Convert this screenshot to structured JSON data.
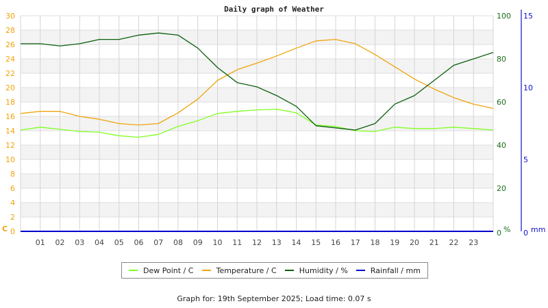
{
  "chart_data": {
    "type": "line",
    "title": "Daily graph of Weather",
    "xlabel": "",
    "x_ticks": [
      "01",
      "02",
      "03",
      "04",
      "05",
      "06",
      "07",
      "08",
      "09",
      "10",
      "11",
      "12",
      "13",
      "14",
      "15",
      "16",
      "17",
      "18",
      "19",
      "20",
      "21",
      "22",
      "23"
    ],
    "x_hours": [
      0,
      1,
      2,
      3,
      4,
      5,
      6,
      7,
      8,
      9,
      10,
      11,
      12,
      13,
      14,
      15,
      16,
      17,
      18,
      19,
      20,
      21,
      22,
      23,
      24
    ],
    "axes": {
      "left": {
        "label": "C",
        "range": [
          0,
          30
        ],
        "ticks": [
          0,
          2,
          4,
          6,
          8,
          10,
          12,
          14,
          16,
          18,
          20,
          22,
          24,
          26,
          28,
          30
        ],
        "color": "#f0a30a"
      },
      "right_humidity": {
        "label": "%",
        "range": [
          0,
          100
        ],
        "ticks": [
          0,
          20,
          40,
          60,
          80,
          100
        ],
        "color": "#1a6b1a"
      },
      "right_rainfall": {
        "label": "mm",
        "range": [
          0,
          15
        ],
        "ticks": [
          0,
          5,
          10,
          15
        ],
        "color": "#1010c8"
      }
    },
    "grid": true,
    "legend_position": "bottom",
    "series": [
      {
        "name": "Dew Point / C",
        "axis": "left",
        "color": "#80ff20",
        "values": [
          14.1,
          14.5,
          14.2,
          13.9,
          13.8,
          13.3,
          13.1,
          13.5,
          14.6,
          15.4,
          16.4,
          16.7,
          16.9,
          17.0,
          16.5,
          14.8,
          14.6,
          14.0,
          13.9,
          14.5,
          14.3,
          14.3,
          14.5,
          14.3,
          14.1
        ]
      },
      {
        "name": "Temperature / C",
        "axis": "left",
        "color": "#f0a30a",
        "values": [
          16.4,
          16.7,
          16.7,
          16.0,
          15.6,
          15.0,
          14.8,
          15.0,
          16.5,
          18.4,
          21.0,
          22.5,
          23.4,
          24.4,
          25.5,
          26.5,
          26.7,
          26.1,
          24.6,
          22.9,
          21.2,
          19.8,
          18.6,
          17.7,
          17.1
        ]
      },
      {
        "name": "Humidity / %",
        "axis": "right_humidity",
        "color": "#0b5e0b",
        "values": [
          87,
          87,
          86,
          87,
          89,
          89,
          91,
          92,
          91,
          85,
          76,
          69,
          67,
          63,
          58,
          49,
          48,
          47,
          50,
          59,
          63,
          70,
          77,
          80,
          83
        ]
      },
      {
        "name": "Rainfall / mm",
        "axis": "right_rainfall",
        "color": "#0000cc",
        "values": [
          0,
          0,
          0,
          0,
          0,
          0,
          0,
          0,
          0,
          0,
          0,
          0,
          0,
          0,
          0,
          0,
          0,
          0,
          0,
          0,
          0,
          0,
          0,
          0,
          0
        ]
      }
    ]
  },
  "legend": {
    "items": [
      {
        "label": "Dew Point / C",
        "color": "#80ff20"
      },
      {
        "label": "Temperature / C",
        "color": "#f0a30a"
      },
      {
        "label": "Humidity / %",
        "color": "#0b5e0b"
      },
      {
        "label": "Rainfall / mm",
        "color": "#0000cc"
      }
    ]
  },
  "footer": {
    "text": "Graph for: 19th September 2025; Load time: 0.07 s"
  }
}
